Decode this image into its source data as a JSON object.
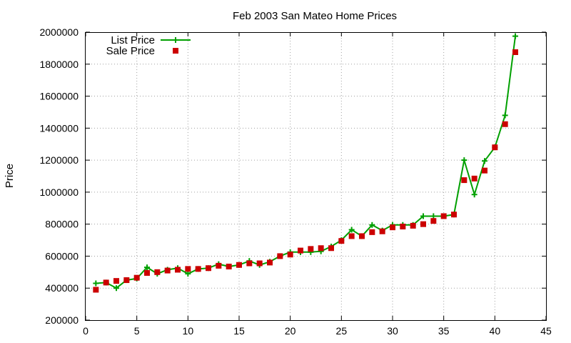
{
  "chart_data": {
    "type": "line",
    "title": "Feb 2003 San Mateo Home Prices",
    "xlabel": "",
    "ylabel": "Price",
    "xlim": [
      0,
      45
    ],
    "ylim": [
      200000,
      2000000
    ],
    "x_ticks": [
      "0",
      "5",
      "10",
      "15",
      "20",
      "25",
      "30",
      "35",
      "40",
      "45"
    ],
    "y_ticks": [
      "200000",
      "400000",
      "600000",
      "800000",
      "1000000",
      "1200000",
      "1400000",
      "1600000",
      "1800000",
      "2000000"
    ],
    "grid": true,
    "legend_position": "top-left",
    "x": [
      1,
      2,
      3,
      4,
      5,
      6,
      7,
      8,
      9,
      10,
      11,
      12,
      13,
      14,
      15,
      16,
      17,
      18,
      19,
      20,
      21,
      22,
      23,
      24,
      25,
      26,
      27,
      28,
      29,
      30,
      31,
      32,
      33,
      34,
      35,
      36,
      37,
      38,
      39,
      40,
      41,
      42
    ],
    "series": [
      {
        "name": "List Price",
        "style": "linespoints",
        "marker": "plus",
        "color": "#00a000",
        "values": [
          430000,
          435000,
          400000,
          450000,
          460000,
          530000,
          490000,
          515000,
          525000,
          490000,
          520000,
          525000,
          550000,
          535000,
          545000,
          570000,
          545000,
          565000,
          600000,
          625000,
          625000,
          625000,
          630000,
          660000,
          700000,
          765000,
          725000,
          795000,
          760000,
          795000,
          795000,
          795000,
          850000,
          850000,
          850000,
          860000,
          1200000,
          985000,
          1195000,
          1280000,
          1480000,
          1975000
        ]
      },
      {
        "name": "Sale Price",
        "style": "points",
        "marker": "square",
        "color": "#cc0000",
        "values": [
          390000,
          435000,
          445000,
          450000,
          465000,
          495000,
          500000,
          510000,
          515000,
          520000,
          520000,
          525000,
          540000,
          535000,
          545000,
          555000,
          555000,
          560000,
          600000,
          610000,
          635000,
          645000,
          650000,
          650000,
          695000,
          725000,
          725000,
          750000,
          755000,
          780000,
          785000,
          790000,
          800000,
          820000,
          850000,
          860000,
          1075000,
          1085000,
          1135000,
          1280000,
          1425000,
          1875000
        ]
      }
    ]
  }
}
